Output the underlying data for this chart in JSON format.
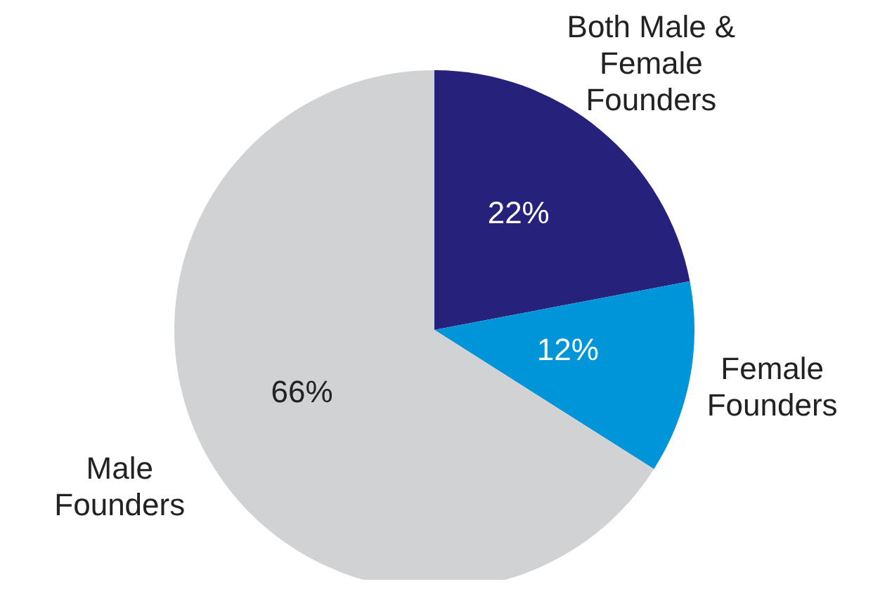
{
  "chart_data": {
    "type": "pie",
    "categories": [
      "Both Male & Female Founders",
      "Female Founders",
      "Male Founders"
    ],
    "values": [
      22,
      12,
      66
    ],
    "colors": [
      "#26217a",
      "#0095d9",
      "#d1d2d4"
    ],
    "value_labels": [
      "22%",
      "12%",
      "66%"
    ]
  }
}
